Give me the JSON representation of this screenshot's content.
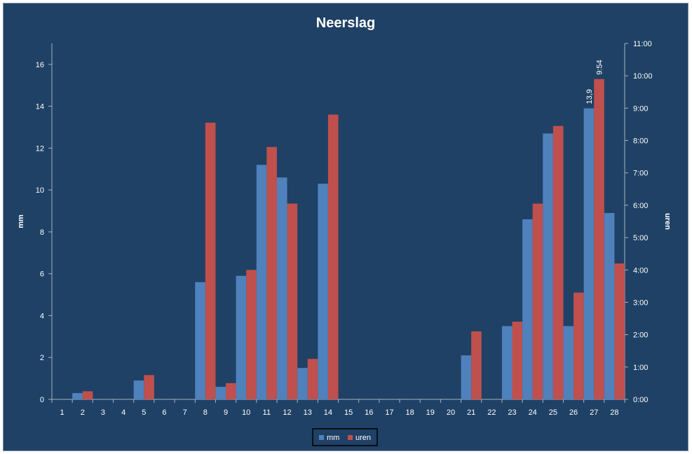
{
  "chart_data": {
    "type": "bar",
    "title": "Neerslag",
    "xlabel": "",
    "ylabel": "mm",
    "y2label": "uren",
    "categories": [
      "1",
      "2",
      "3",
      "4",
      "5",
      "6",
      "7",
      "8",
      "9",
      "10",
      "11",
      "12",
      "13",
      "14",
      "15",
      "16",
      "17",
      "18",
      "19",
      "20",
      "21",
      "22",
      "23",
      "24",
      "25",
      "26",
      "27",
      "28"
    ],
    "series": [
      {
        "name": "mm",
        "axis": "left",
        "color": "#4f81bd",
        "values": [
          0,
          0.3,
          0,
          0,
          0.9,
          0,
          0,
          5.6,
          0.6,
          5.9,
          11.2,
          10.6,
          1.5,
          10.3,
          0,
          0,
          0,
          0,
          0,
          0,
          2.1,
          0,
          3.5,
          8.6,
          12.7,
          3.5,
          13.9,
          8.9
        ]
      },
      {
        "name": "uren",
        "axis": "right",
        "color": "#c0504d",
        "values": [
          0,
          0.25,
          0,
          0,
          0.75,
          0,
          0,
          8.55,
          0.5,
          4.0,
          7.8,
          6.05,
          1.25,
          8.8,
          0,
          0,
          0,
          0,
          0,
          0,
          2.1,
          0,
          2.4,
          6.05,
          8.45,
          3.3,
          9.9,
          4.2
        ]
      }
    ],
    "ylim": [
      0,
      17
    ],
    "yticks": [
      "0",
      "2",
      "4",
      "6",
      "8",
      "10",
      "12",
      "14",
      "16"
    ],
    "y2lim": [
      0,
      11
    ],
    "y2ticks": [
      "0:00",
      "1:00",
      "2:00",
      "3:00",
      "4:00",
      "5:00",
      "6:00",
      "7:00",
      "8:00",
      "9:00",
      "10:00",
      "11:00"
    ],
    "data_labels": [
      {
        "series": "mm",
        "category": "27",
        "text": "13,9"
      },
      {
        "series": "uren",
        "category": "27",
        "text": "9:54"
      }
    ],
    "grid": false,
    "legend_position": "bottom"
  }
}
